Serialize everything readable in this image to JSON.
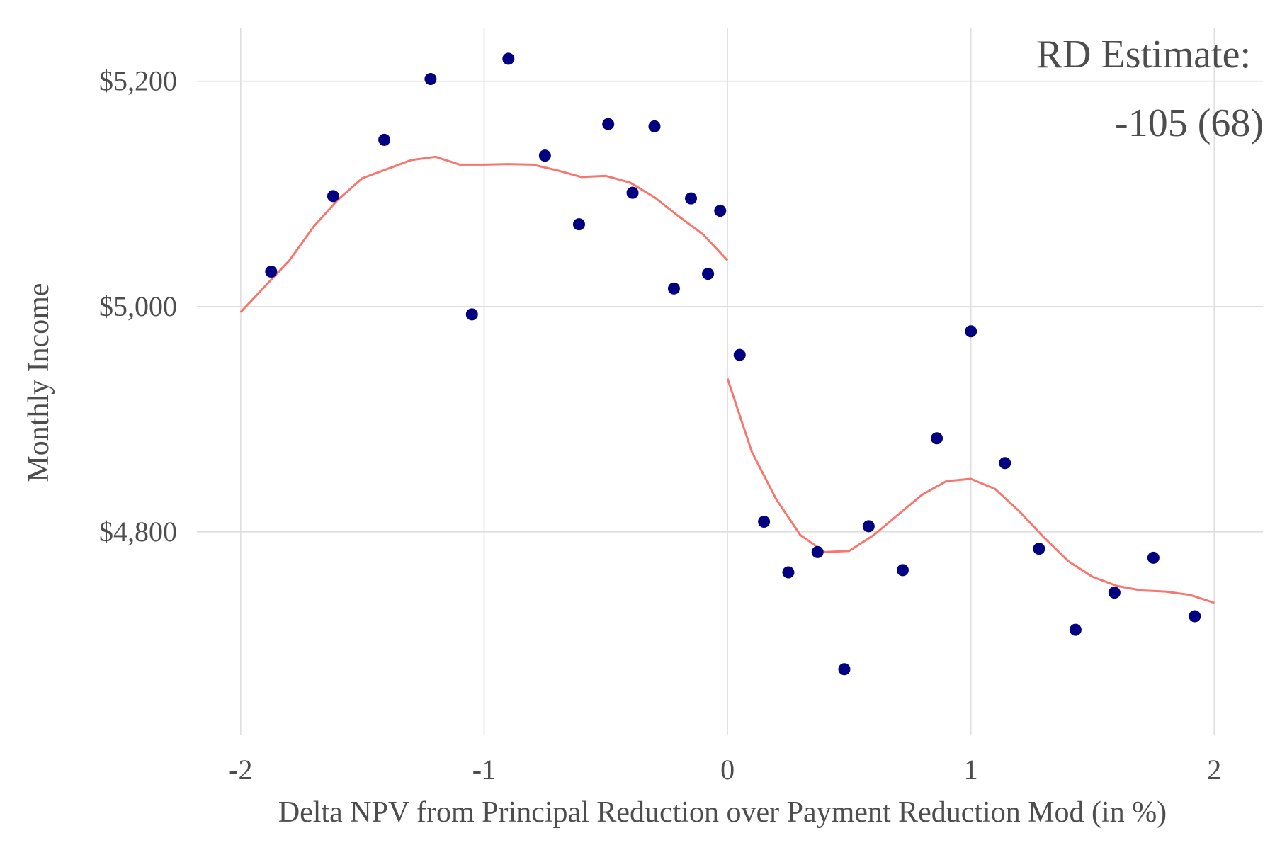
{
  "chart_data": {
    "type": "scatter",
    "xlabel": "Delta NPV from Principal Reduction over Payment Reduction Mod (in %)",
    "ylabel": "Monthly Income",
    "xlim": [
      -2.18,
      2.2
    ],
    "ylim": [
      4620,
      5247
    ],
    "x_ticks": [
      -2,
      -1,
      0,
      1,
      2
    ],
    "x_tick_labels": [
      "-2",
      "-1",
      "0",
      "1",
      "2"
    ],
    "y_ticks": [
      4800,
      5000,
      5200
    ],
    "y_tick_labels": [
      "$4,800",
      "$5,000",
      "$5,200"
    ],
    "grid": true,
    "annotation": [
      "RD Estimate:",
      "-105 (68)"
    ],
    "colors": {
      "points": "#000080",
      "fit": "#f8766d",
      "grid": "#dedede",
      "text": "#4d4d4d"
    },
    "series": [
      {
        "type": "scatter",
        "points": [
          [
            -1.875,
            5031
          ],
          [
            -1.62,
            5098
          ],
          [
            -1.41,
            5148
          ],
          [
            -1.22,
            5202
          ],
          [
            -1.05,
            4993
          ],
          [
            -0.9,
            5220
          ],
          [
            -0.75,
            5134
          ],
          [
            -0.61,
            5073
          ],
          [
            -0.49,
            5162
          ],
          [
            -0.39,
            5101
          ],
          [
            -0.3,
            5160
          ],
          [
            -0.22,
            5016
          ],
          [
            -0.15,
            5096
          ],
          [
            -0.08,
            5029
          ],
          [
            -0.03,
            5085
          ],
          [
            0.05,
            4957
          ],
          [
            0.15,
            4809
          ],
          [
            0.25,
            4764
          ],
          [
            0.37,
            4782
          ],
          [
            0.48,
            4678
          ],
          [
            0.58,
            4805
          ],
          [
            0.72,
            4766
          ],
          [
            0.86,
            4883
          ],
          [
            1.0,
            4978
          ],
          [
            1.14,
            4861
          ],
          [
            1.28,
            4785
          ],
          [
            1.43,
            4713
          ],
          [
            1.59,
            4746
          ],
          [
            1.75,
            4777
          ],
          [
            1.92,
            4725
          ]
        ]
      },
      {
        "type": "line",
        "segment": "left",
        "points": [
          [
            -2.0,
            4995
          ],
          [
            -1.9,
            5018
          ],
          [
            -1.8,
            5041
          ],
          [
            -1.7,
            5071
          ],
          [
            -1.6,
            5095
          ],
          [
            -1.5,
            5114
          ],
          [
            -1.4,
            5122
          ],
          [
            -1.3,
            5130
          ],
          [
            -1.2,
            5133
          ],
          [
            -1.1,
            5126
          ],
          [
            -1.0,
            5126
          ],
          [
            -0.9,
            5126.5
          ],
          [
            -0.8,
            5126
          ],
          [
            -0.7,
            5121
          ],
          [
            -0.6,
            5115
          ],
          [
            -0.5,
            5116
          ],
          [
            -0.4,
            5110
          ],
          [
            -0.3,
            5097
          ],
          [
            -0.2,
            5080
          ],
          [
            -0.1,
            5064
          ],
          [
            0.0,
            5041
          ]
        ]
      },
      {
        "type": "line",
        "segment": "right",
        "points": [
          [
            0.0,
            4936
          ],
          [
            0.1,
            4871
          ],
          [
            0.2,
            4829
          ],
          [
            0.3,
            4797
          ],
          [
            0.4,
            4782
          ],
          [
            0.5,
            4783
          ],
          [
            0.6,
            4797
          ],
          [
            0.7,
            4815
          ],
          [
            0.8,
            4833
          ],
          [
            0.9,
            4845
          ],
          [
            1.0,
            4847
          ],
          [
            1.1,
            4838
          ],
          [
            1.2,
            4818
          ],
          [
            1.3,
            4795
          ],
          [
            1.4,
            4774
          ],
          [
            1.5,
            4760
          ],
          [
            1.6,
            4752
          ],
          [
            1.7,
            4748
          ],
          [
            1.8,
            4747
          ],
          [
            1.9,
            4744
          ],
          [
            2.0,
            4737
          ]
        ]
      }
    ]
  }
}
